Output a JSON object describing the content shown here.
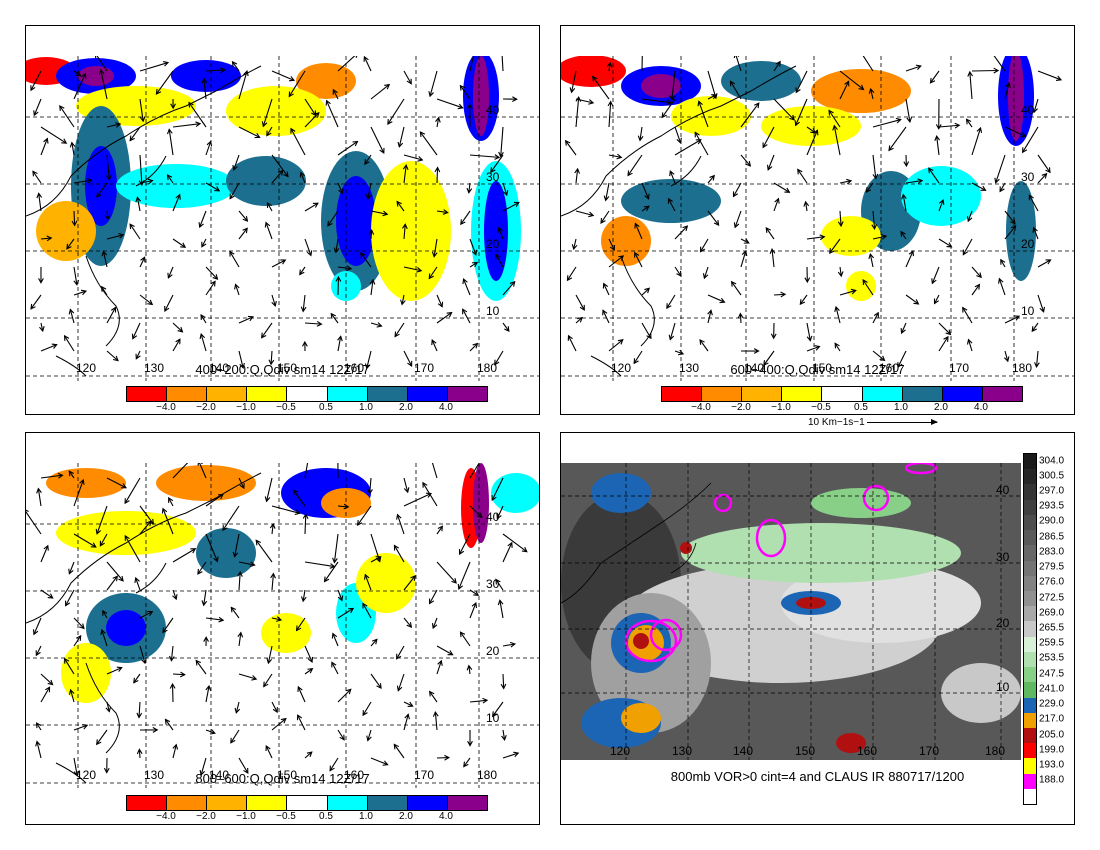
{
  "panels": {
    "p1": {
      "title": "400–200:Q,Qdiv sm14 12Z/17"
    },
    "p2": {
      "title": "600–400:Q,Qdiv sm14 12Z/17"
    },
    "p3": {
      "title": "800–600:Q,Qdiv sm14 12Z/17"
    },
    "p4": {
      "title": "800mb VOR>0 cint=4 and CLAUS IR 880717/1200"
    }
  },
  "colorbar": {
    "labels": [
      "−4.0",
      "−2.0",
      "−1.0",
      "−0.5",
      "0.5",
      "1.0",
      "2.0",
      "4.0"
    ],
    "colors": [
      "#ff0000",
      "#ff8c00",
      "#ffb300",
      "#ffff00",
      "#ffffff",
      "#00ffff",
      "#1c6f8f",
      "#0000ff",
      "#8b008b"
    ]
  },
  "vector_scale": {
    "label": "10 Km−1s−1"
  },
  "lon_labels": [
    "120",
    "130",
    "140",
    "150",
    "160",
    "170",
    "180"
  ],
  "lat_labels": [
    "10",
    "20",
    "30",
    "40"
  ],
  "ir_colorbar": {
    "labels": [
      "304.0",
      "300.5",
      "297.0",
      "293.5",
      "290.0",
      "286.5",
      "283.0",
      "279.5",
      "276.0",
      "272.5",
      "269.0",
      "265.5",
      "259.5",
      "253.5",
      "247.5",
      "241.0",
      "229.0",
      "217.0",
      "205.0",
      "199.0",
      "193.0",
      "188.0"
    ],
    "colors": [
      "#1a1a1a",
      "#262626",
      "#333333",
      "#404040",
      "#4d4d4d",
      "#5a5a5a",
      "#676767",
      "#747474",
      "#828282",
      "#909090",
      "#a8a8a8",
      "#c8c8c8",
      "#d8efd8",
      "#b0dfb0",
      "#88cf88",
      "#60b860",
      "#1c64b4",
      "#f0a000",
      "#b01010",
      "#ff0000",
      "#ffff00",
      "#ff00ff",
      "#ffffff"
    ]
  }
}
